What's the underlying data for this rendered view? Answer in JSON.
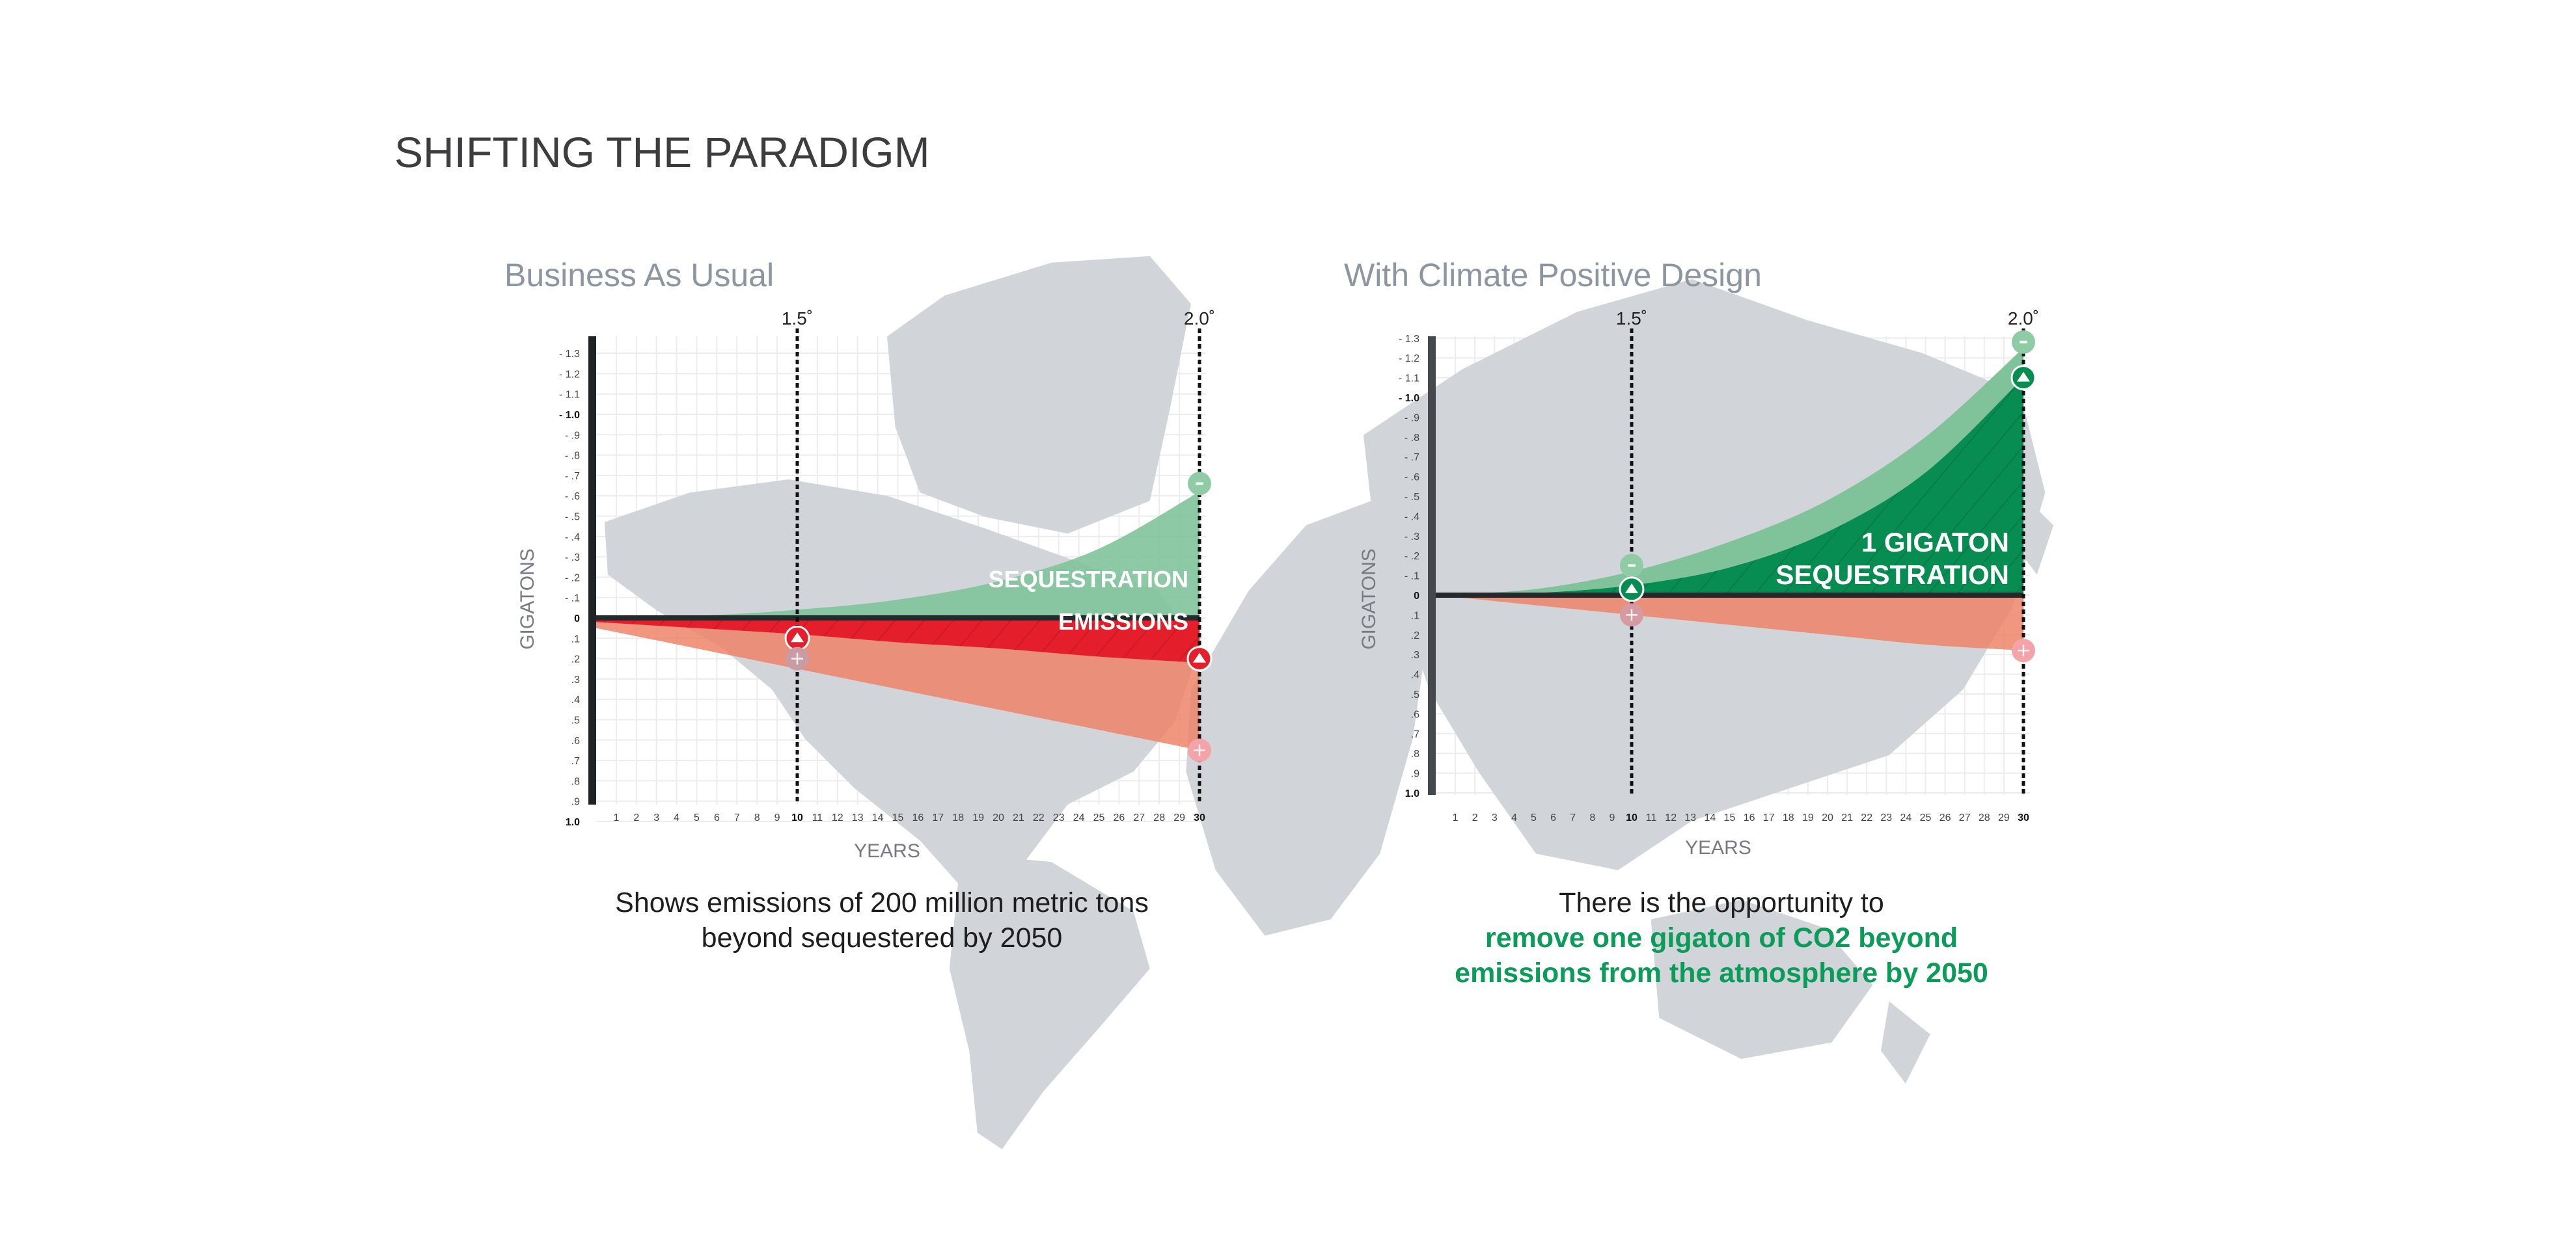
{
  "page": {
    "title": "SHIFTING THE PARADIGM",
    "left_caption": [
      "Shows emissions of 200 million metric tons",
      "beyond sequestered by 2050"
    ],
    "right_caption": {
      "intro": "There is the opportunity to",
      "highlight": [
        "remove one gigaton of CO2 beyond",
        "emissions from the atmosphere by 2050"
      ],
      "highlight_color": "#0c9c5a"
    },
    "background": "world map (gray)"
  },
  "colors": {
    "sequestration_light": "#80c39a",
    "sequestration_dark": "#078c51",
    "emissions": "#e41e2b",
    "projected_emissions": "#ee8469",
    "map": "#d1d4d9"
  },
  "chart_data": [
    {
      "type": "area",
      "title": "Business As Usual",
      "xlabel": "YEARS",
      "ylabel": "GIGATONS",
      "xlim": [
        0,
        30
      ],
      "ylim": [
        -1.3,
        1.0
      ],
      "grid": true,
      "x_ticks": [
        "1",
        "2",
        "3",
        "4",
        "5",
        "6",
        "7",
        "8",
        "9",
        "10",
        "11",
        "12",
        "13",
        "14",
        "15",
        "16",
        "17",
        "18",
        "19",
        "20",
        "21",
        "22",
        "23",
        "24",
        "25",
        "26",
        "27",
        "28",
        "29",
        "30"
      ],
      "y_ticks": [
        "- 1.3",
        "- 1.2",
        "- 1.1",
        "- 1.0",
        "- .9",
        "- .8",
        "- .7",
        "- .6",
        "- .5",
        "- .4",
        "- .3",
        "- .2",
        "- .1",
        "0",
        ".1",
        ".2",
        ".3",
        ".4",
        ".5",
        ".6",
        ".7",
        ".8",
        ".9",
        "1.0"
      ],
      "reference_lines": [
        {
          "x": 10,
          "label": "1.5˚"
        },
        {
          "x": 30,
          "label": "2.0˚"
        }
      ],
      "series": [
        {
          "key": "projected",
          "x": [
            0,
            5,
            10,
            15,
            20,
            25,
            30
          ],
          "values": [
            0.05,
            0.15,
            0.25,
            0.35,
            0.45,
            0.55,
            0.65
          ],
          "color": "#ee8469"
        },
        {
          "key": "emissions",
          "name": "EMISSIONS",
          "x": [
            0,
            5,
            10,
            15,
            20,
            25,
            30
          ],
          "values": [
            0.02,
            0.05,
            0.08,
            0.12,
            0.15,
            0.19,
            0.22
          ],
          "color": "#e41e2b",
          "hatched": true
        },
        {
          "key": "sequestration",
          "name": "SEQUESTRATION",
          "x": [
            0,
            5,
            10,
            15,
            20,
            25,
            30
          ],
          "values": [
            0,
            -0.01,
            -0.04,
            -0.09,
            -0.18,
            -0.34,
            -0.62
          ],
          "color": "#80c39a"
        }
      ],
      "markers": [
        {
          "x": 10,
          "y": 0.1,
          "symbol": "triangle",
          "color": "#e41e2b"
        },
        {
          "x": 10,
          "y": 0.2,
          "symbol": "plus",
          "color": "#c99ba2"
        },
        {
          "x": 30,
          "y": 0.2,
          "symbol": "triangle",
          "color": "#e41e2b"
        },
        {
          "x": 30,
          "y": 0.65,
          "symbol": "plus",
          "color": "#f4a3a9"
        },
        {
          "x": 30,
          "y": -0.66,
          "symbol": "minus",
          "color": "#8fcca6"
        }
      ]
    },
    {
      "type": "area",
      "title": "With Climate Positive Design",
      "xlabel": "YEARS",
      "ylabel": "GIGATONS",
      "xlim": [
        0,
        30
      ],
      "ylim": [
        -1.3,
        1.0
      ],
      "grid": true,
      "x_ticks": [
        "1",
        "2",
        "3",
        "4",
        "5",
        "6",
        "7",
        "8",
        "9",
        "10",
        "11",
        "12",
        "13",
        "14",
        "15",
        "16",
        "17",
        "18",
        "19",
        "20",
        "21",
        "22",
        "23",
        "24",
        "25",
        "26",
        "27",
        "28",
        "29",
        "30"
      ],
      "y_ticks": [
        "- 1.3",
        "- 1.2",
        "- 1.1",
        "- 1.0",
        "- .9",
        "- .8",
        "- .7",
        "- .6",
        "- .5",
        "- .4",
        "- .3",
        "- .2",
        "- .1",
        "0",
        ".1",
        ".2",
        ".3",
        ".4",
        ".5",
        ".6",
        ".7",
        ".8",
        ".9",
        "1.0"
      ],
      "reference_lines": [
        {
          "x": 10,
          "label": "1.5˚"
        },
        {
          "x": 30,
          "label": "2.0˚"
        }
      ],
      "series": [
        {
          "key": "projected",
          "x": [
            0,
            5,
            10,
            15,
            20,
            25,
            30
          ],
          "values": [
            0,
            0.05,
            0.1,
            0.15,
            0.2,
            0.25,
            0.28
          ],
          "color": "#ee8469"
        },
        {
          "key": "sequestration_potential",
          "x": [
            0,
            5,
            10,
            15,
            20,
            25,
            30
          ],
          "values": [
            0,
            -0.03,
            -0.12,
            -0.27,
            -0.48,
            -0.8,
            -1.25
          ],
          "color": "#80c39a"
        },
        {
          "key": "sequestration",
          "name": "1 GIGATON SEQUESTRATION",
          "name_lines": [
            "1 GIGATON",
            "SEQUESTRATION"
          ],
          "x": [
            0,
            5,
            10,
            15,
            20,
            25,
            30
          ],
          "values": [
            0,
            -0.01,
            -0.05,
            -0.14,
            -0.32,
            -0.62,
            -1.1
          ],
          "color": "#078c51",
          "hatched": true
        }
      ],
      "markers": [
        {
          "x": 10,
          "y": -0.15,
          "symbol": "minus",
          "color": "#8fcca6"
        },
        {
          "x": 10,
          "y": -0.03,
          "symbol": "triangle",
          "color": "#078c51"
        },
        {
          "x": 10,
          "y": 0.1,
          "symbol": "plus",
          "color": "#d59aa2"
        },
        {
          "x": 30,
          "y": -1.28,
          "symbol": "minus",
          "color": "#8fcca6"
        },
        {
          "x": 30,
          "y": -1.1,
          "symbol": "triangle",
          "color": "#078c51"
        },
        {
          "x": 30,
          "y": 0.28,
          "symbol": "plus",
          "color": "#f4a3a9"
        }
      ]
    }
  ]
}
